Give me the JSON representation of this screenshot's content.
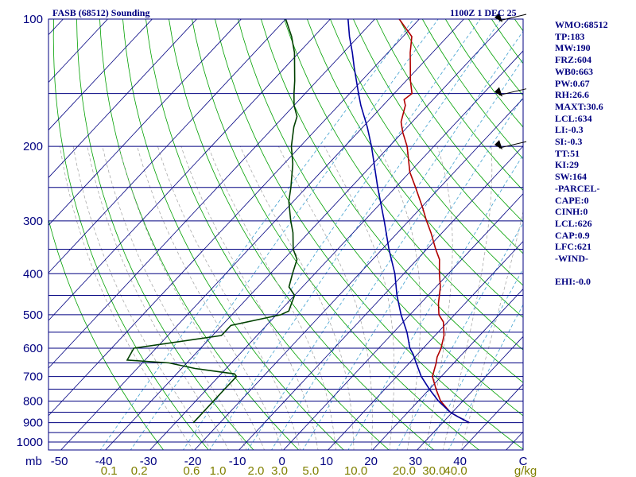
{
  "station": "FASB (68512) Sounding",
  "time": "1100Z  1 DEC 25",
  "indices": [
    "WMO:68512",
    "TP:183",
    "MW:190",
    "FRZ:604",
    "WB0:663",
    "PW:0.67",
    "RH:26.6",
    "MAXT:30.6",
    "LCL:634",
    "LI:-0.3",
    "SI:-0.3",
    "TT:51",
    "KI:29",
    "SW:164",
    "-PARCEL-",
    "CAPE:0",
    "CINH:0",
    "LCL:626",
    "CAP:0.9",
    "LFC:621",
    "-WIND-",
    "",
    "EHI:-0.0"
  ],
  "colors": {
    "frame": "#000080",
    "isobar": "#000080",
    "isotherm": "#000080",
    "dry_adiabat": "#00a000",
    "moist_adiabat": "#a0a0a0",
    "mixing_ratio": "#40a0d0",
    "temperature": "#b00000",
    "dewpoint": "#004000",
    "parcel": "#0000a0",
    "ratio_labels": "#808000"
  },
  "chart_data": {
    "type": "line",
    "diagram": "skew-T log-P",
    "y_axis_unit": "mb",
    "x_axis_unit": "°C",
    "ratio_unit": "g/kg",
    "pressure_ticks": [
      100,
      200,
      300,
      400,
      500,
      600,
      700,
      800,
      900,
      1000
    ],
    "isobars": [
      100,
      150,
      200,
      250,
      300,
      350,
      400,
      450,
      500,
      550,
      600,
      650,
      700,
      750,
      800,
      850,
      900,
      950,
      1000
    ],
    "temp_ticks": [
      -50,
      -40,
      -30,
      -20,
      -10,
      0,
      10,
      20,
      30,
      40
    ],
    "temp_tick_labels": [
      "-50",
      "-40",
      "-30",
      "-20",
      "-10",
      "0",
      "10",
      "20",
      "30",
      "40"
    ],
    "mixing_ratios": [
      0.1,
      0.2,
      0.6,
      1.0,
      2.0,
      3.0,
      5.0,
      10.0,
      20.0,
      30.0,
      40.0
    ],
    "mixing_ratio_labels": [
      "0.1",
      "0.2",
      "0.6",
      "1.0",
      "2.0",
      "3.0",
      "5.0",
      "10.0",
      "20.0",
      "30.0",
      "40.0"
    ],
    "ylim": [
      1000,
      100
    ],
    "xlim": [
      -50,
      50
    ],
    "series": [
      {
        "key": "temperature",
        "points": [
          [
            900,
            36
          ],
          [
            870,
            32
          ],
          [
            850,
            29.5
          ],
          [
            800,
            25
          ],
          [
            750,
            21.5
          ],
          [
            700,
            18
          ],
          [
            650,
            16
          ],
          [
            630,
            15
          ],
          [
            600,
            14
          ],
          [
            560,
            12
          ],
          [
            520,
            9
          ],
          [
            500,
            6.5
          ],
          [
            470,
            4
          ],
          [
            430,
            1
          ],
          [
            400,
            -2
          ],
          [
            370,
            -5
          ],
          [
            350,
            -8
          ],
          [
            320,
            -12.5
          ],
          [
            300,
            -16
          ],
          [
            280,
            -19.5
          ],
          [
            250,
            -25.5
          ],
          [
            230,
            -30
          ],
          [
            200,
            -36
          ],
          [
            185,
            -40
          ],
          [
            175,
            -42.5
          ],
          [
            160,
            -45
          ],
          [
            155,
            -46.5
          ],
          [
            150,
            -46
          ],
          [
            140,
            -49
          ],
          [
            120,
            -55
          ],
          [
            110,
            -58
          ],
          [
            100,
            -64.5
          ]
        ]
      },
      {
        "key": "dewpoint",
        "points": [
          [
            900,
            -26
          ],
          [
            850,
            -26
          ],
          [
            800,
            -26
          ],
          [
            750,
            -26
          ],
          [
            700,
            -26
          ],
          [
            690,
            -27
          ],
          [
            670,
            -37
          ],
          [
            650,
            -44
          ],
          [
            640,
            -54
          ],
          [
            600,
            -55
          ],
          [
            560,
            -38
          ],
          [
            530,
            -38
          ],
          [
            500,
            -29
          ],
          [
            490,
            -28
          ],
          [
            470,
            -29
          ],
          [
            450,
            -30
          ],
          [
            430,
            -33
          ],
          [
            400,
            -35
          ],
          [
            370,
            -37
          ],
          [
            350,
            -40
          ],
          [
            320,
            -43.5
          ],
          [
            300,
            -46.5
          ],
          [
            270,
            -51
          ],
          [
            250,
            -53.5
          ],
          [
            220,
            -58
          ],
          [
            200,
            -62
          ],
          [
            180,
            -65.5
          ],
          [
            170,
            -67
          ],
          [
            160,
            -70
          ],
          [
            150,
            -72.5
          ],
          [
            140,
            -75
          ],
          [
            120,
            -81
          ],
          [
            110,
            -85
          ],
          [
            100,
            -90
          ]
        ]
      },
      {
        "key": "parcel",
        "points": [
          [
            900,
            36
          ],
          [
            870,
            32
          ],
          [
            850,
            29.5
          ],
          [
            800,
            24.5
          ],
          [
            750,
            20
          ],
          [
            700,
            15.5
          ],
          [
            650,
            11.5
          ],
          [
            620,
            9
          ],
          [
            600,
            7
          ],
          [
            550,
            3
          ],
          [
            500,
            -2
          ],
          [
            450,
            -7
          ],
          [
            400,
            -12
          ],
          [
            350,
            -18.5
          ],
          [
            300,
            -25.5
          ],
          [
            250,
            -34
          ],
          [
            200,
            -44
          ],
          [
            180,
            -49
          ],
          [
            160,
            -55
          ],
          [
            150,
            -58
          ],
          [
            130,
            -64.5
          ],
          [
            120,
            -68
          ],
          [
            110,
            -72
          ],
          [
            100,
            -76
          ]
        ]
      }
    ],
    "wind_barbs_mb": [
      100,
      150,
      200
    ]
  }
}
